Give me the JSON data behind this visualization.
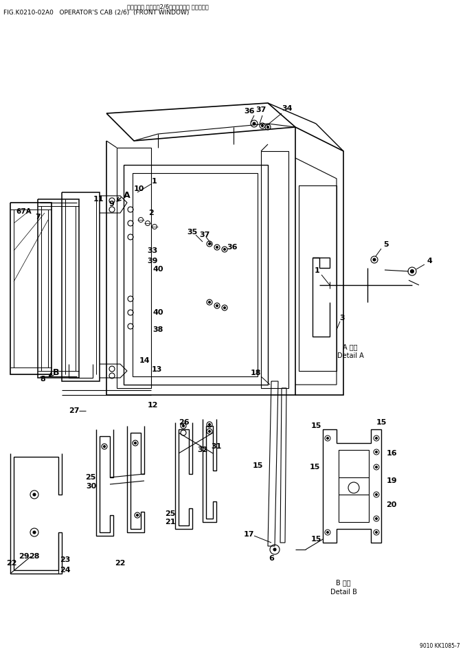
{
  "title_line1": "オペレータ キャブ（2/6）（フロント ウインド）",
  "title_line2": "FIG.K0210-02A0   OPERATOR'S CAB (2/6)  (FRONT WINDOW)",
  "page_num": "9010 KK1085-7",
  "bg_color": "#ffffff",
  "line_color": "#000000",
  "fig_width": 6.77,
  "fig_height": 9.55,
  "dpi": 100
}
